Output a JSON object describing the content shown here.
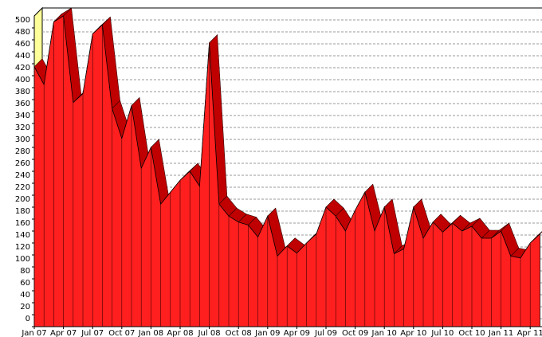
{
  "chart_data": {
    "type": "area3d",
    "categories": [
      "Jan 07",
      null,
      null,
      "Apr 07",
      null,
      null,
      "Jul 07",
      null,
      null,
      "Oct 07",
      null,
      null,
      "Jan 08",
      null,
      null,
      "Apr 08",
      null,
      null,
      "Jul 08",
      null,
      null,
      "Oct 08",
      null,
      null,
      "Jan 09",
      null,
      null,
      "Apr 09",
      null,
      null,
      "Jul 09",
      null,
      null,
      "Oct 09",
      null,
      null,
      "Jan 10",
      null,
      null,
      "Apr 10",
      null,
      null,
      "Jul 10",
      null,
      null,
      "Oct 10",
      null,
      null,
      "Jan 11",
      null,
      null,
      "Apr 11",
      null
    ],
    "values": [
      435,
      405,
      510,
      520,
      375,
      390,
      490,
      505,
      365,
      315,
      370,
      265,
      300,
      205,
      225,
      245,
      260,
      235,
      475,
      205,
      185,
      175,
      170,
      150,
      185,
      118,
      135,
      123,
      140,
      155,
      200,
      185,
      160,
      195,
      225,
      160,
      200,
      122,
      130,
      200,
      148,
      175,
      158,
      173,
      160,
      168,
      148,
      148,
      160,
      118,
      115,
      140,
      155
    ],
    "color": "#ff1f1f",
    "ylim": [
      0,
      520
    ],
    "yticks": [
      0,
      20,
      40,
      60,
      80,
      100,
      120,
      140,
      160,
      180,
      200,
      220,
      240,
      260,
      280,
      300,
      320,
      340,
      360,
      380,
      400,
      420,
      440,
      460,
      480,
      500
    ],
    "grid": true
  }
}
